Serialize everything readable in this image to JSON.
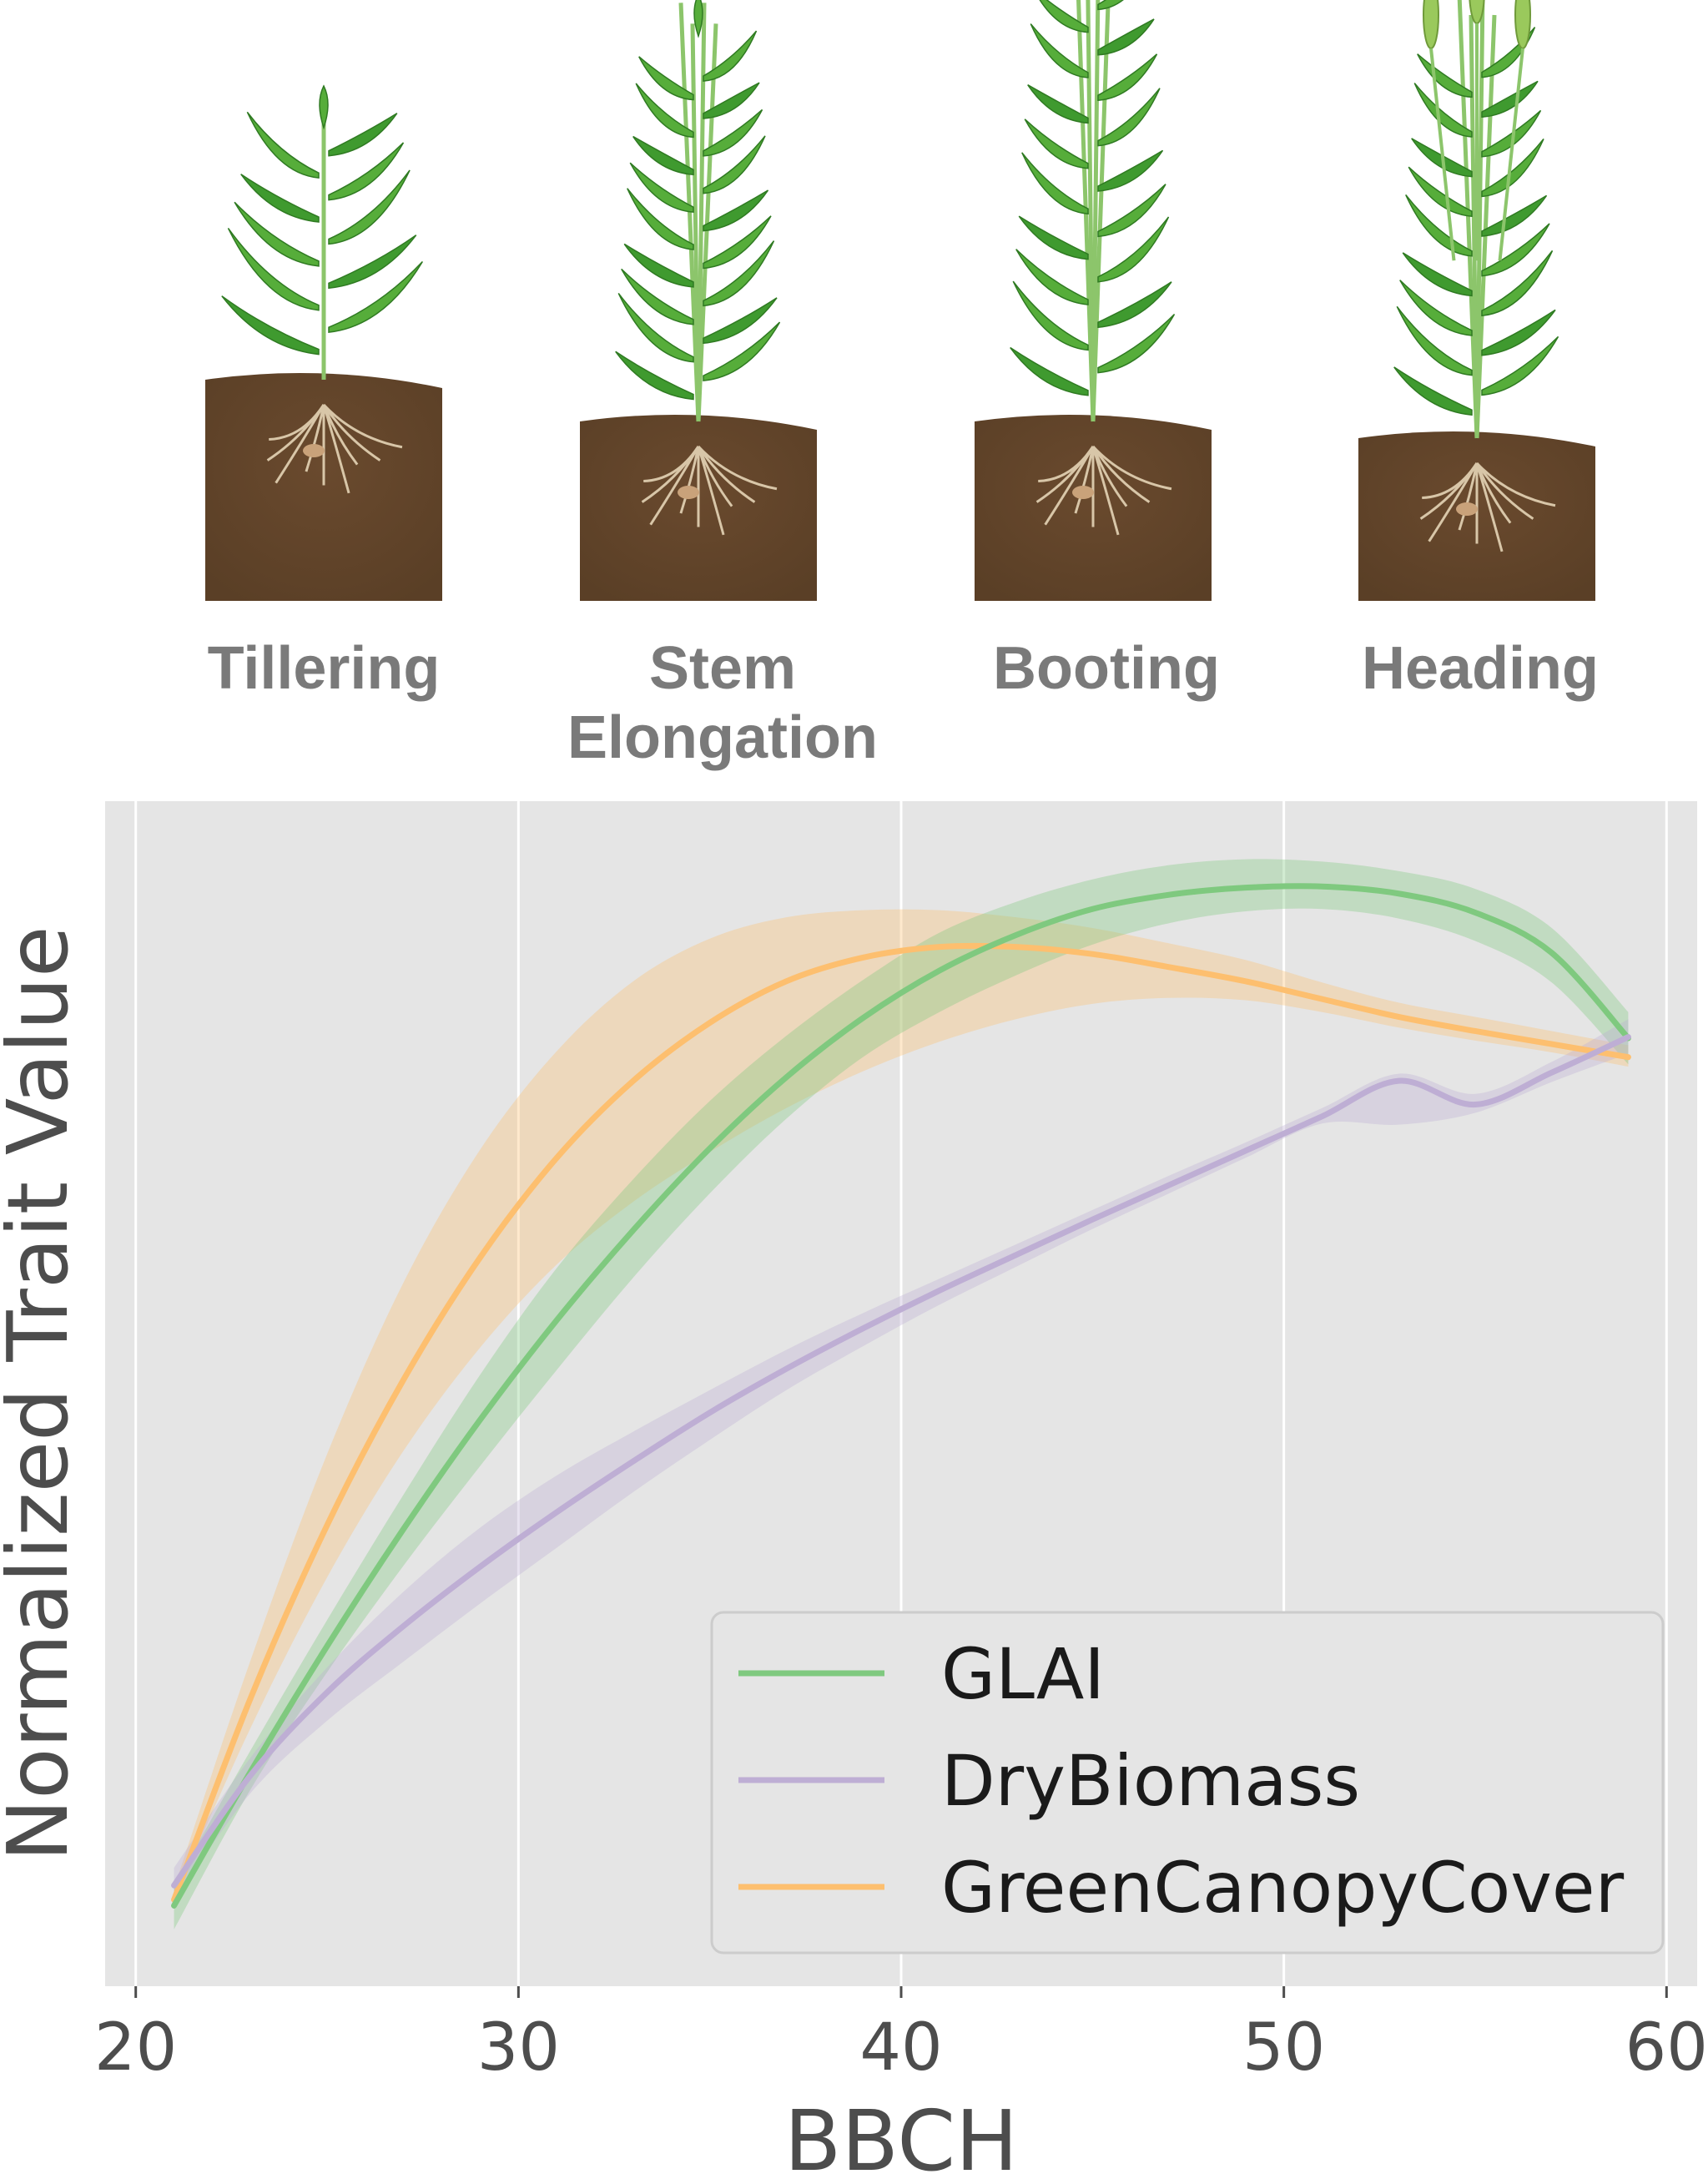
{
  "stages": [
    {
      "label_lines": [
        "Tillering"
      ],
      "plant_height": 0.45
    },
    {
      "label_lines": [
        "Stem",
        "Elongation"
      ],
      "plant_height": 0.66
    },
    {
      "label_lines": [
        "Booting"
      ],
      "plant_height": 0.8
    },
    {
      "label_lines": [
        "Heading"
      ],
      "plant_height": 0.7
    }
  ],
  "chart_data": {
    "type": "line",
    "xlabel": "BBCH",
    "ylabel": "Normalized Trait Value",
    "xlim": [
      19.2,
      60.8
    ],
    "ylim": [
      0.0,
      1.0
    ],
    "xticks": [
      20,
      30,
      40,
      50,
      60
    ],
    "grid": true,
    "background": "#e5e5e5",
    "legend_position": "lower-right",
    "series": [
      {
        "name": "GreenCanopyCover",
        "color": "#fdbf6f",
        "x": [
          21,
          23,
          25,
          27,
          29,
          31,
          33,
          35,
          37,
          39,
          41,
          43,
          45,
          47,
          49,
          51,
          53,
          55,
          57,
          59
        ],
        "y": [
          0.073,
          0.243,
          0.389,
          0.512,
          0.615,
          0.699,
          0.764,
          0.813,
          0.848,
          0.868,
          0.877,
          0.877,
          0.871,
          0.86,
          0.848,
          0.833,
          0.818,
          0.806,
          0.795,
          0.784
        ],
        "lower": [
          0.073,
          0.218,
          0.345,
          0.452,
          0.539,
          0.609,
          0.662,
          0.704,
          0.741,
          0.772,
          0.797,
          0.816,
          0.829,
          0.834,
          0.832,
          0.822,
          0.809,
          0.798,
          0.788,
          0.776
        ],
        "upper": [
          0.083,
          0.275,
          0.449,
          0.594,
          0.706,
          0.789,
          0.848,
          0.884,
          0.902,
          0.908,
          0.908,
          0.902,
          0.893,
          0.88,
          0.866,
          0.847,
          0.83,
          0.818,
          0.806,
          0.794
        ]
      },
      {
        "name": "GLAI",
        "color": "#7fc97f",
        "x": [
          21,
          23,
          25,
          27,
          29,
          31,
          33,
          35,
          37,
          39,
          41,
          43,
          45,
          47,
          49,
          51,
          53,
          55,
          57,
          59
        ],
        "y": [
          0.068,
          0.181,
          0.287,
          0.386,
          0.478,
          0.562,
          0.638,
          0.707,
          0.767,
          0.817,
          0.857,
          0.887,
          0.909,
          0.921,
          0.927,
          0.928,
          0.922,
          0.906,
          0.872,
          0.8
        ],
        "lower": [
          0.048,
          0.166,
          0.265,
          0.355,
          0.439,
          0.52,
          0.598,
          0.669,
          0.732,
          0.784,
          0.822,
          0.853,
          0.879,
          0.897,
          0.907,
          0.909,
          0.901,
          0.882,
          0.847,
          0.778
        ],
        "upper": [
          0.085,
          0.199,
          0.309,
          0.415,
          0.516,
          0.606,
          0.681,
          0.747,
          0.802,
          0.849,
          0.889,
          0.915,
          0.934,
          0.946,
          0.951,
          0.949,
          0.941,
          0.926,
          0.893,
          0.822
        ]
      },
      {
        "name": "DryBiomass",
        "color": "#beaed4",
        "x": [
          21,
          23,
          25,
          27,
          29,
          31,
          33,
          35,
          37,
          39,
          41,
          43,
          45,
          47,
          49,
          51,
          53,
          55,
          57,
          59
        ],
        "y": [
          0.085,
          0.178,
          0.248,
          0.304,
          0.354,
          0.4,
          0.443,
          0.484,
          0.521,
          0.555,
          0.587,
          0.617,
          0.647,
          0.676,
          0.705,
          0.734,
          0.764,
          0.744,
          0.771,
          0.801
        ],
        "lower": [
          0.072,
          0.163,
          0.224,
          0.274,
          0.323,
          0.37,
          0.417,
          0.461,
          0.503,
          0.54,
          0.575,
          0.607,
          0.639,
          0.669,
          0.699,
          0.728,
          0.727,
          0.737,
          0.763,
          0.787
        ],
        "upper": [
          0.1,
          0.193,
          0.269,
          0.333,
          0.387,
          0.431,
          0.468,
          0.503,
          0.537,
          0.568,
          0.597,
          0.626,
          0.655,
          0.684,
          0.712,
          0.741,
          0.77,
          0.753,
          0.78,
          0.816
        ]
      }
    ],
    "legend_order": [
      "GLAI",
      "DryBiomass",
      "GreenCanopyCover"
    ]
  }
}
